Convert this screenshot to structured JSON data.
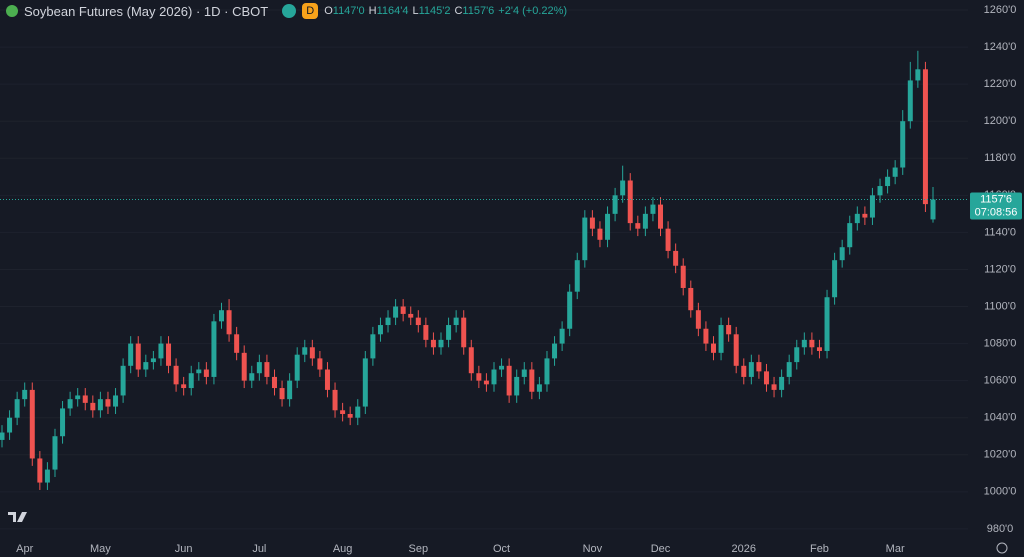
{
  "header": {
    "title": "Soybean Futures (May 2026) · 1D · CBOT",
    "badge": "D",
    "ohlc": [
      {
        "label": "O",
        "value": "1147'0"
      },
      {
        "label": "H",
        "value": "1164'4"
      },
      {
        "label": "L",
        "value": "1145'2"
      },
      {
        "label": "C",
        "value": "1157'6"
      }
    ],
    "change": "+2'4 (+0.22%)"
  },
  "chart_data": {
    "type": "candlestick",
    "up_color": "#26a69a",
    "down_color": "#ef5350",
    "grid": true,
    "categories": [
      null,
      null,
      null,
      "Apr",
      null,
      null,
      null,
      null,
      null,
      null,
      null,
      null,
      null,
      "May",
      null,
      null,
      null,
      null,
      null,
      null,
      null,
      null,
      null,
      null,
      "Jun",
      null,
      null,
      null,
      null,
      null,
      null,
      null,
      null,
      null,
      "Jul",
      null,
      null,
      null,
      null,
      null,
      null,
      null,
      null,
      null,
      null,
      "Aug",
      null,
      null,
      null,
      null,
      null,
      null,
      null,
      null,
      null,
      "Sep",
      null,
      null,
      null,
      null,
      null,
      null,
      null,
      null,
      null,
      null,
      "Oct",
      null,
      null,
      null,
      null,
      null,
      null,
      null,
      null,
      null,
      null,
      null,
      "Nov",
      null,
      null,
      null,
      null,
      null,
      null,
      null,
      null,
      "Dec",
      null,
      null,
      null,
      null,
      null,
      null,
      null,
      null,
      null,
      null,
      "2026",
      null,
      null,
      null,
      null,
      null,
      null,
      null,
      null,
      null,
      "Feb",
      null,
      null,
      null,
      null,
      null,
      null,
      null,
      null,
      null,
      "Mar",
      null,
      null,
      null,
      null,
      null
    ],
    "open": [
      1028,
      1032,
      1040,
      1050,
      1055,
      1018,
      1005,
      1012,
      1030,
      1045,
      1050,
      1052,
      1048,
      1044,
      1050,
      1046,
      1052,
      1068,
      1080,
      1066,
      1070,
      1072,
      1080,
      1068,
      1058,
      1056,
      1064,
      1066,
      1062,
      1092,
      1098,
      1085,
      1075,
      1060,
      1064,
      1070,
      1062,
      1056,
      1050,
      1060,
      1074,
      1078,
      1072,
      1066,
      1055,
      1044,
      1042,
      1040,
      1046,
      1072,
      1085,
      1090,
      1094,
      1100,
      1096,
      1094,
      1090,
      1082,
      1078,
      1082,
      1090,
      1094,
      1078,
      1064,
      1060,
      1058,
      1066,
      1068,
      1052,
      1062,
      1066,
      1054,
      1058,
      1072,
      1080,
      1088,
      1108,
      1125,
      1148,
      1142,
      1136,
      1150,
      1160,
      1168,
      1145,
      1142,
      1150,
      1155,
      1142,
      1130,
      1122,
      1110,
      1098,
      1088,
      1080,
      1075,
      1090,
      1085,
      1068,
      1062,
      1070,
      1065,
      1058,
      1055,
      1062,
      1070,
      1078,
      1082,
      1078,
      1076,
      1105,
      1125,
      1132,
      1145,
      1150,
      1148,
      1160,
      1165,
      1170,
      1175,
      1200,
      1222,
      1228,
      1147
    ],
    "high": [
      1036,
      1044,
      1054,
      1059,
      1059,
      1022,
      1016,
      1034,
      1049,
      1054,
      1056,
      1056,
      1052,
      1054,
      1054,
      1056,
      1072,
      1084,
      1084,
      1074,
      1076,
      1084,
      1084,
      1072,
      1062,
      1068,
      1070,
      1070,
      1096,
      1102,
      1104,
      1089,
      1079,
      1068,
      1074,
      1074,
      1066,
      1060,
      1064,
      1078,
      1082,
      1082,
      1076,
      1070,
      1059,
      1048,
      1046,
      1050,
      1076,
      1089,
      1094,
      1098,
      1104,
      1104,
      1100,
      1098,
      1094,
      1086,
      1086,
      1094,
      1098,
      1098,
      1082,
      1068,
      1064,
      1070,
      1072,
      1072,
      1066,
      1070,
      1070,
      1062,
      1076,
      1084,
      1092,
      1112,
      1129,
      1152,
      1152,
      1146,
      1154,
      1164,
      1176,
      1172,
      1149,
      1154,
      1159,
      1159,
      1146,
      1134,
      1126,
      1114,
      1102,
      1092,
      1084,
      1094,
      1094,
      1089,
      1072,
      1074,
      1074,
      1069,
      1062,
      1066,
      1074,
      1082,
      1086,
      1086,
      1082,
      1109,
      1129,
      1136,
      1149,
      1154,
      1154,
      1164,
      1169,
      1174,
      1179,
      1206,
      1232,
      1238,
      1232,
      1164.5
    ],
    "low": [
      1024,
      1028,
      1036,
      1046,
      1014,
      1001,
      1001,
      1008,
      1026,
      1041,
      1046,
      1044,
      1040,
      1040,
      1042,
      1042,
      1048,
      1064,
      1062,
      1062,
      1066,
      1068,
      1064,
      1054,
      1052,
      1052,
      1060,
      1058,
      1058,
      1088,
      1081,
      1071,
      1056,
      1056,
      1060,
      1058,
      1052,
      1046,
      1046,
      1056,
      1070,
      1068,
      1062,
      1051,
      1040,
      1038,
      1036,
      1036,
      1042,
      1068,
      1081,
      1086,
      1090,
      1092,
      1090,
      1086,
      1078,
      1074,
      1074,
      1078,
      1086,
      1074,
      1060,
      1056,
      1054,
      1054,
      1062,
      1048,
      1048,
      1058,
      1050,
      1050,
      1054,
      1068,
      1076,
      1084,
      1104,
      1121,
      1138,
      1132,
      1132,
      1146,
      1156,
      1141,
      1138,
      1138,
      1146,
      1138,
      1126,
      1118,
      1106,
      1094,
      1084,
      1076,
      1071,
      1071,
      1081,
      1064,
      1058,
      1058,
      1061,
      1054,
      1051,
      1051,
      1058,
      1066,
      1074,
      1074,
      1072,
      1072,
      1101,
      1121,
      1128,
      1141,
      1144,
      1144,
      1156,
      1161,
      1166,
      1171,
      1196,
      1218,
      1151,
      1145.25
    ],
    "close": [
      1032,
      1040,
      1050,
      1055,
      1018,
      1005,
      1012,
      1030,
      1045,
      1050,
      1052,
      1048,
      1044,
      1050,
      1046,
      1052,
      1068,
      1080,
      1066,
      1070,
      1072,
      1080,
      1068,
      1058,
      1056,
      1064,
      1066,
      1062,
      1092,
      1098,
      1085,
      1075,
      1060,
      1064,
      1070,
      1062,
      1056,
      1050,
      1060,
      1074,
      1078,
      1072,
      1066,
      1055,
      1044,
      1042,
      1040,
      1046,
      1072,
      1085,
      1090,
      1094,
      1100,
      1096,
      1094,
      1090,
      1082,
      1078,
      1082,
      1090,
      1094,
      1078,
      1064,
      1060,
      1058,
      1066,
      1068,
      1052,
      1062,
      1066,
      1054,
      1058,
      1072,
      1080,
      1088,
      1108,
      1125,
      1148,
      1142,
      1136,
      1150,
      1160,
      1168,
      1145,
      1142,
      1150,
      1155,
      1142,
      1130,
      1122,
      1110,
      1098,
      1088,
      1080,
      1075,
      1090,
      1085,
      1068,
      1062,
      1070,
      1065,
      1058,
      1055,
      1062,
      1070,
      1078,
      1082,
      1078,
      1076,
      1105,
      1125,
      1132,
      1145,
      1150,
      1148,
      1160,
      1165,
      1170,
      1175,
      1200,
      1222,
      1228,
      1155.25,
      1157.75
    ],
    "ylim": [
      974,
      1265.4
    ],
    "yticks": [
      {
        "value": 980,
        "label": "980'0"
      },
      {
        "value": 1000,
        "label": "1000'0"
      },
      {
        "value": 1020,
        "label": "1020'0"
      },
      {
        "value": 1040,
        "label": "1040'0"
      },
      {
        "value": 1060,
        "label": "1060'0"
      },
      {
        "value": 1080,
        "label": "1080'0"
      },
      {
        "value": 1100,
        "label": "1100'0"
      },
      {
        "value": 1120,
        "label": "1120'0"
      },
      {
        "value": 1140,
        "label": "1140'0"
      },
      {
        "value": 1160,
        "label": "1160'0"
      },
      {
        "value": 1180,
        "label": "1180'0"
      },
      {
        "value": 1200,
        "label": "1200'0"
      },
      {
        "value": 1220,
        "label": "1220'0"
      },
      {
        "value": 1240,
        "label": "1240'0"
      },
      {
        "value": 1260,
        "label": "1260'0"
      }
    ],
    "last_price": {
      "value": 1157.75,
      "label": "1157'6"
    },
    "countdown": "07:08:56"
  }
}
